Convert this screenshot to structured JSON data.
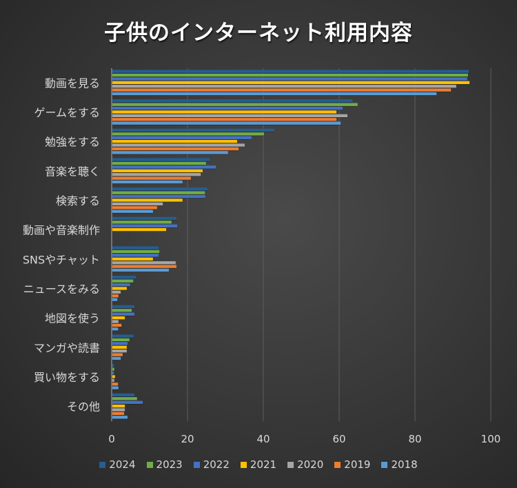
{
  "chart_data": {
    "type": "bar",
    "orientation": "horizontal",
    "title": "子供のインターネット利用内容",
    "xlabel": "",
    "ylabel": "",
    "xlim": [
      0,
      100
    ],
    "x_ticks": [
      "0",
      "20",
      "40",
      "60",
      "80",
      "100"
    ],
    "x_tick_values": [
      0,
      20,
      40,
      60,
      80,
      100
    ],
    "grid": true,
    "legend_position": "bottom",
    "categories": [
      "動画を見る",
      "ゲームをする",
      "勉強をする",
      "音楽を聴く",
      "検索する",
      "動画や音楽制作",
      "SNSやチャット",
      "ニュースをみる",
      "地図を使う",
      "マンガや読書",
      "買い物をする",
      "その他"
    ],
    "series": [
      {
        "name": "2024",
        "color": "#255e91",
        "values": [
          94.0,
          63.3,
          42.7,
          25.6,
          25.1,
          16.9,
          12.2,
          6.2,
          5.8,
          5.6,
          0.4,
          5.8
        ]
      },
      {
        "name": "2023",
        "color": "#70ad47",
        "values": [
          93.8,
          64.7,
          40.0,
          24.7,
          24.4,
          15.6,
          12.4,
          5.5,
          5.1,
          4.5,
          0.5,
          6.5
        ]
      },
      {
        "name": "2022",
        "color": "#4472c4",
        "values": [
          93.6,
          60.7,
          36.7,
          27.3,
          24.5,
          17.1,
          12.2,
          4.7,
          5.8,
          4.0,
          0.4,
          8.0
        ]
      },
      {
        "name": "2021",
        "color": "#ffc000",
        "values": [
          94.2,
          59.1,
          32.9,
          23.8,
          18.5,
          14.2,
          10.7,
          3.8,
          3.3,
          3.8,
          0.7,
          3.3
        ]
      },
      {
        "name": "2020",
        "color": "#a5a5a5",
        "values": [
          90.7,
          62.0,
          34.9,
          23.3,
          13.3,
          0,
          16.7,
          2.2,
          1.6,
          3.8,
          0.5,
          3.3
        ]
      },
      {
        "name": "2019",
        "color": "#ed7d31",
        "values": [
          89.3,
          59.1,
          33.3,
          20.7,
          11.8,
          0,
          16.9,
          1.6,
          2.4,
          2.7,
          1.5,
          3.1
        ]
      },
      {
        "name": "2018",
        "color": "#5b9bd5",
        "values": [
          85.5,
          60.2,
          30.5,
          18.5,
          10.7,
          0,
          14.9,
          1.3,
          1.5,
          2.2,
          1.6,
          4.0
        ]
      }
    ]
  }
}
